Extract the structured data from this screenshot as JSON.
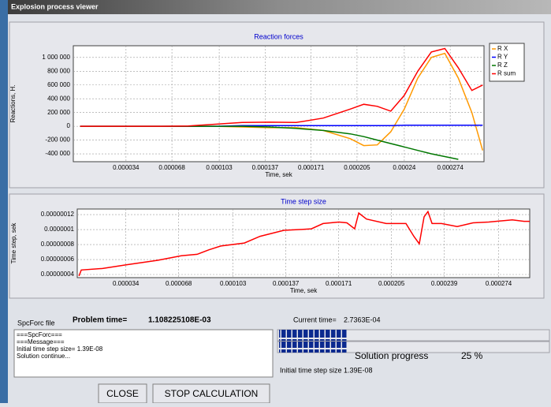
{
  "window": {
    "title": "Explosion process viewer"
  },
  "chart_data": [
    {
      "type": "line",
      "title": "Reaction forces",
      "xlabel": "Time, sek",
      "ylabel": "Reactions, H.",
      "x": [
        0,
        2e-05,
        4e-05,
        6e-05,
        8e-05,
        0.0001,
        0.00012,
        0.00014,
        0.00016,
        0.00018,
        0.0002,
        0.00021,
        0.00022,
        0.00023,
        0.00024,
        0.00025,
        0.00026,
        0.00027,
        0.00028,
        0.00029,
        0.000298
      ],
      "series": [
        {
          "name": "R X",
          "color": "#ff9900",
          "values": [
            0,
            0,
            0,
            0,
            0,
            0,
            -10000,
            -20000,
            -20000,
            -60000,
            -180000,
            -280000,
            -270000,
            -80000,
            250000,
            700000,
            1000000,
            1060000,
            700000,
            200000,
            -350000
          ]
        },
        {
          "name": "R Y",
          "color": "#0000ff",
          "values": [
            0,
            0,
            0,
            0,
            0,
            0,
            10000,
            10000,
            10000,
            10000,
            10000,
            10000,
            10000,
            10000,
            15000,
            15000,
            15000,
            15000,
            15000,
            15000,
            15000
          ]
        },
        {
          "name": "R Z",
          "color": "#007700",
          "values": [
            0,
            0,
            0,
            0,
            0,
            0,
            0,
            -10000,
            -30000,
            -60000,
            -110000,
            -150000,
            -200000,
            -250000,
            -300000,
            -350000,
            -400000,
            -440000,
            -480000,
            null,
            null
          ]
        },
        {
          "name": "R sum",
          "color": "#ff0000",
          "values": [
            0,
            0,
            0,
            0,
            5000,
            30000,
            55000,
            60000,
            55000,
            120000,
            250000,
            320000,
            290000,
            220000,
            450000,
            800000,
            1080000,
            1130000,
            850000,
            520000,
            600000
          ]
        }
      ],
      "xlim": [
        -5e-06,
        0.000299
      ],
      "xticks": [
        3.4e-05,
        6.8e-05,
        0.000103,
        0.000137,
        0.000171,
        0.000205,
        0.00024,
        0.000274
      ],
      "ylim": [
        -514000,
        1170000
      ],
      "yticks": [
        {
          "value": -400000,
          "label": "-400 000"
        },
        {
          "value": -200000,
          "label": "-200 000"
        },
        0,
        {
          "value": 200000,
          "label": "200 000"
        },
        {
          "value": 400000,
          "label": "400 000"
        },
        {
          "value": 600000,
          "label": "600 000"
        },
        {
          "value": 800000,
          "label": "800 000"
        },
        {
          "value": 1000000,
          "label": "1 000 000"
        }
      ],
      "grid": true,
      "legend": "right"
    },
    {
      "type": "line",
      "title": "Time step size",
      "xlabel": "Time, sek",
      "ylabel": "Time step, sek",
      "x": [
        3.8e-06,
        5.3e-06,
        1.9e-05,
        3.42e-05,
        5.45e-05,
        6.97e-05,
        7.99e-05,
        8.75e-05,
        9.51e-05,
        0.0001103,
        0.0001204,
        0.0001357,
        0.0001458,
        0.0001534,
        0.000161,
        0.0001712,
        0.0001763,
        0.0001813,
        0.0001839,
        0.0001889,
        0.0002016,
        0.0002093,
        0.0002143,
        0.0002194,
        0.0002229,
        0.000226,
        0.0002285,
        0.0002311,
        0.0002372,
        0.0002473,
        0.0002575,
        0.0002676,
        0.0002828,
        0.0002904,
        0.000294
      ],
      "series": [
        {
          "name": "Time step",
          "color": "#ff0000",
          "values": [
            3.8e-08,
            4.6e-08,
            4.8e-08,
            5.3e-08,
            5.9e-08,
            6.5e-08,
            6.7e-08,
            7.3e-08,
            7.8e-08,
            8.2e-08,
            9.1e-08,
            9.9e-08,
            1e-07,
            1.01e-07,
            1.08e-07,
            1.1e-07,
            1.09e-07,
            1.01e-07,
            1.22e-07,
            1.14e-07,
            1.08e-07,
            1.08e-07,
            1.08e-07,
            9.1e-08,
            8.1e-08,
            1.17e-07,
            1.24e-07,
            1.08e-07,
            1.08e-07,
            1.04e-07,
            1.09e-07,
            1.1e-07,
            1.13e-07,
            1.11e-07,
            1.11e-07
          ]
        }
      ],
      "xlim": [
        2.7e-06,
        0.000294
      ],
      "xticks": [
        3.4e-05,
        6.8e-05,
        0.000103,
        0.000137,
        0.000171,
        0.000205,
        0.000239,
        0.000274
      ],
      "ylim": [
        3.58e-08,
        1.274e-07
      ],
      "yticks": [
        {
          "value": 4e-08,
          "label": "0.00000004"
        },
        {
          "value": 6e-08,
          "label": "0.00000006"
        },
        {
          "value": 8e-08,
          "label": "0.00000008"
        },
        {
          "value": 1e-07,
          "label": "0.0000001"
        },
        {
          "value": 1.2e-07,
          "label": "0.00000012"
        }
      ],
      "grid": true
    }
  ],
  "status": {
    "file_label": "SpcForc file",
    "problem_label": "Problem time=",
    "problem_value": "1.108225108E-03",
    "current_label": "Current time=",
    "current_value": "2.7363E-04",
    "initial_step": "Initial time step size 1.39E-08"
  },
  "log": [
    "===SpcForc===",
    "===Message===",
    "Initial time step size= 1.39E-08",
    "Solution continue..."
  ],
  "progress": {
    "label": "Solution progress",
    "value": 25,
    "value_label": "25 %"
  },
  "buttons": [
    "CLOSE",
    "STOP CALCULATION"
  ]
}
